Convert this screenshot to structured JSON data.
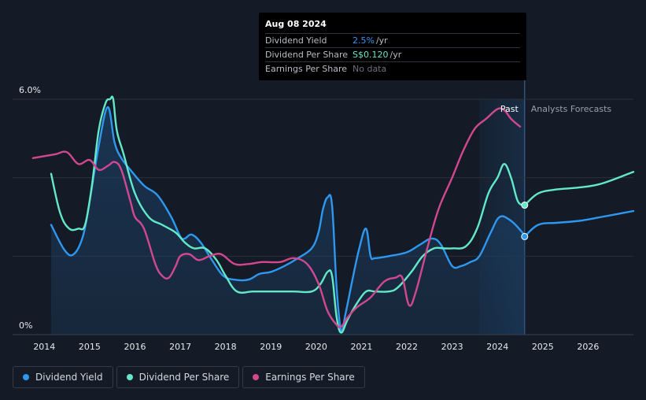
{
  "tooltip": {
    "date": "Aug 08 2024",
    "rows": [
      {
        "label": "Dividend Yield",
        "value": "2.5%",
        "unit": " /yr",
        "color": "#2e98f0"
      },
      {
        "label": "Dividend Per Share",
        "value": "S$0.120",
        "unit": " /yr",
        "color": "#63e8c8"
      },
      {
        "label": "Earnings Per Share",
        "value": "No data"
      }
    ]
  },
  "legend": [
    {
      "label": "Dividend Yield",
      "color": "#2e98f0"
    },
    {
      "label": "Dividend Per Share",
      "color": "#63e8c8"
    },
    {
      "label": "Earnings Per Share",
      "color": "#d1488f"
    }
  ],
  "chart_data": {
    "type": "line",
    "y_tick_labels": [
      "6.0%",
      "0%"
    ],
    "ylim": [
      0,
      6
    ],
    "xlim": [
      2013.3,
      2027.0
    ],
    "x_tick_labels": [
      "2014",
      "2015",
      "2016",
      "2017",
      "2018",
      "2019",
      "2020",
      "2021",
      "2022",
      "2023",
      "2024",
      "2025",
      "2026"
    ],
    "past_label": "Past",
    "forecast_label": "Analysts Forecasts",
    "past_region_start": 2023.6,
    "today": 2024.6,
    "colors": {
      "yield": "#2e98f0",
      "dps": "#63e8c8",
      "eps": "#d1488f"
    },
    "series": [
      {
        "name": "Dividend Yield",
        "key": "yield",
        "area": true,
        "x": [
          2014.15,
          2014.45,
          2014.65,
          2014.85,
          2015.0,
          2015.2,
          2015.4,
          2015.55,
          2015.7,
          2015.9,
          2016.2,
          2016.5,
          2016.8,
          2017.0,
          2017.1,
          2017.25,
          2017.45,
          2017.7,
          2017.95,
          2018.2,
          2018.5,
          2018.75,
          2019.0,
          2019.3,
          2019.6,
          2019.9,
          2020.05,
          2020.15,
          2020.25,
          2020.35,
          2020.45,
          2020.55,
          2020.65,
          2020.8,
          2020.95,
          2021.1,
          2021.2,
          2021.3,
          2021.6,
          2022.0,
          2022.3,
          2022.55,
          2022.75,
          2023.0,
          2023.2,
          2023.4,
          2023.6,
          2023.85,
          2024.05,
          2024.3,
          2024.55,
          2024.6
        ],
        "y": [
          2.8,
          2.15,
          2.05,
          2.5,
          3.4,
          4.8,
          5.8,
          4.9,
          4.5,
          4.2,
          3.8,
          3.55,
          3.0,
          2.5,
          2.45,
          2.55,
          2.35,
          1.9,
          1.5,
          1.4,
          1.4,
          1.55,
          1.6,
          1.75,
          1.95,
          2.2,
          2.6,
          3.2,
          3.5,
          3.3,
          1.2,
          0.1,
          0.55,
          1.4,
          2.2,
          2.7,
          2.0,
          1.95,
          2.0,
          2.1,
          2.3,
          2.45,
          2.3,
          1.75,
          1.75,
          1.85,
          2.0,
          2.6,
          3.0,
          2.9,
          2.6,
          2.5
        ],
        "forecast_x": [
          2024.6,
          2024.9,
          2025.3,
          2025.8,
          2026.3,
          2027.0
        ],
        "forecast_y": [
          2.5,
          2.8,
          2.85,
          2.9,
          3.0,
          3.15
        ],
        "marker": [
          2024.6,
          2.5
        ]
      },
      {
        "name": "Dividend Per Share",
        "key": "dps",
        "area": false,
        "x": [
          2014.15,
          2014.35,
          2014.55,
          2014.75,
          2014.9,
          2015.05,
          2015.2,
          2015.35,
          2015.45,
          2015.52,
          2015.6,
          2015.75,
          2016.0,
          2016.3,
          2016.6,
          2016.9,
          2017.1,
          2017.3,
          2017.55,
          2017.8,
          2018.0,
          2018.25,
          2018.6,
          2019.0,
          2019.5,
          2019.9,
          2020.1,
          2020.25,
          2020.35,
          2020.45,
          2020.55,
          2020.7,
          2020.9,
          2021.1,
          2021.3,
          2021.6,
          2021.8,
          2022.1,
          2022.35,
          2022.6,
          2022.8,
          2023.0,
          2023.3,
          2023.55,
          2023.8,
          2024.0,
          2024.15,
          2024.3,
          2024.45,
          2024.6
        ],
        "y": [
          4.1,
          3.1,
          2.7,
          2.7,
          2.8,
          3.8,
          5.2,
          5.9,
          6.0,
          6.0,
          5.2,
          4.6,
          3.6,
          3.0,
          2.8,
          2.6,
          2.35,
          2.2,
          2.2,
          1.9,
          1.5,
          1.1,
          1.1,
          1.1,
          1.1,
          1.1,
          1.3,
          1.6,
          1.5,
          0.45,
          0.05,
          0.4,
          0.8,
          1.1,
          1.1,
          1.1,
          1.2,
          1.6,
          2.0,
          2.2,
          2.2,
          2.2,
          2.25,
          2.7,
          3.6,
          4.0,
          4.35,
          4.0,
          3.4,
          3.3
        ],
        "forecast_x": [
          2024.6,
          2024.9,
          2025.3,
          2025.8,
          2026.3,
          2027.0
        ],
        "forecast_y": [
          3.3,
          3.6,
          3.7,
          3.75,
          3.85,
          4.15
        ],
        "marker": [
          2024.6,
          3.3
        ]
      },
      {
        "name": "Earnings Per Share",
        "key": "eps",
        "area": false,
        "x": [
          2013.75,
          2014.0,
          2014.25,
          2014.5,
          2014.75,
          2015.0,
          2015.2,
          2015.4,
          2015.55,
          2015.7,
          2015.9,
          2016.0,
          2016.2,
          2016.45,
          2016.6,
          2016.75,
          2016.9,
          2017.0,
          2017.2,
          2017.4,
          2017.65,
          2017.9,
          2018.2,
          2018.5,
          2018.8,
          2019.2,
          2019.5,
          2019.8,
          2020.05,
          2020.25,
          2020.45,
          2020.55,
          2020.7,
          2020.9,
          2021.2,
          2021.5,
          2021.75,
          2021.9,
          2022.05,
          2022.2,
          2022.45,
          2022.7,
          2023.0,
          2023.25,
          2023.5,
          2023.75,
          2024.0,
          2024.15,
          2024.3,
          2024.5
        ],
        "y": [
          4.5,
          4.55,
          4.6,
          4.65,
          4.35,
          4.45,
          4.2,
          4.3,
          4.4,
          4.2,
          3.4,
          3.0,
          2.7,
          1.8,
          1.5,
          1.45,
          1.75,
          2.0,
          2.05,
          1.9,
          2.0,
          2.05,
          1.8,
          1.8,
          1.85,
          1.85,
          1.95,
          1.8,
          1.3,
          0.6,
          0.25,
          0.2,
          0.45,
          0.7,
          0.95,
          1.35,
          1.45,
          1.45,
          0.75,
          1.1,
          2.2,
          3.2,
          4.0,
          4.7,
          5.25,
          5.5,
          5.75,
          5.72,
          5.5,
          5.3
        ]
      }
    ]
  }
}
